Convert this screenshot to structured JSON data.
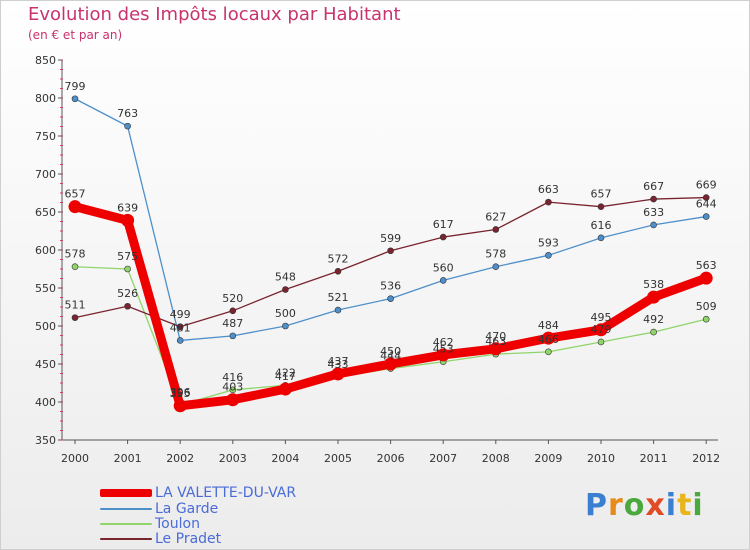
{
  "chart_data": {
    "type": "line",
    "title": "Evolution des Impôts locaux par Habitant",
    "subtitle": "(en € et par an)",
    "categories": [
      "2000",
      "2001",
      "2002",
      "2003",
      "2004",
      "2005",
      "2006",
      "2007",
      "2008",
      "2009",
      "2010",
      "2011",
      "2012"
    ],
    "ylim": [
      350,
      850
    ],
    "yticks": [
      350,
      400,
      450,
      500,
      550,
      600,
      650,
      700,
      750,
      800,
      850
    ],
    "grid": false,
    "legend_position": "bottom-left",
    "series": [
      {
        "name": "LA VALETTE-DU-VAR",
        "color": "#ee0000",
        "values": [
          657,
          639,
          395,
          403,
          417,
          437,
          450,
          462,
          470,
          484,
          495,
          538,
          563
        ]
      },
      {
        "name": "La Garde",
        "color": "#4f8fc9",
        "values": [
          799,
          763,
          481,
          487,
          500,
          521,
          536,
          560,
          578,
          593,
          616,
          633,
          644
        ]
      },
      {
        "name": "Toulon",
        "color": "#90d46a",
        "values": [
          578,
          575,
          396,
          416,
          422,
          433,
          444,
          453,
          463,
          466,
          479,
          492,
          509
        ]
      },
      {
        "name": "Le Pradet",
        "color": "#7a2430",
        "values": [
          511,
          526,
          499,
          520,
          548,
          572,
          599,
          617,
          627,
          663,
          657,
          667,
          669
        ]
      }
    ]
  },
  "logo": {
    "letters": [
      "P",
      "r",
      "o",
      "x",
      "i",
      "t",
      "i"
    ],
    "colors": [
      "#3a7fd0",
      "#e88a1a",
      "#4aa83c",
      "#e04a24",
      "#3a7fd0",
      "#e8b51a",
      "#4aa83c"
    ]
  }
}
